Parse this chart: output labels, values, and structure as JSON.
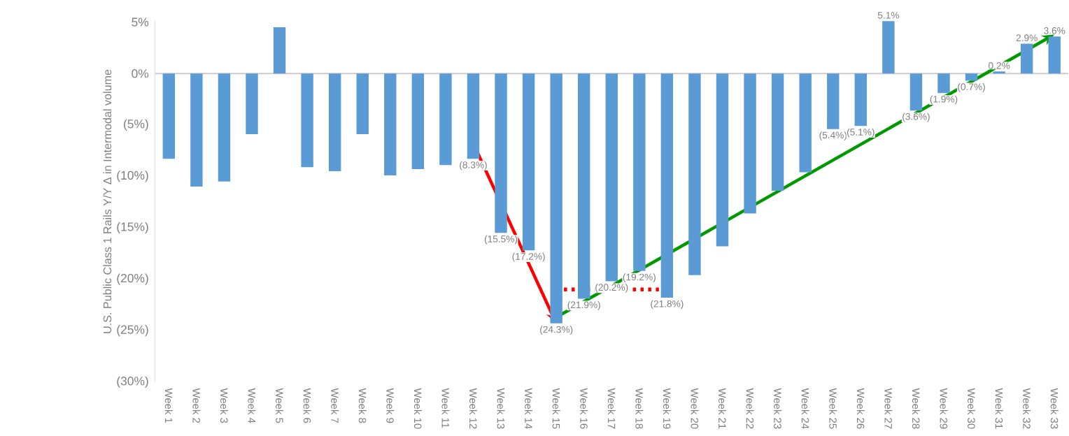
{
  "chart_data": {
    "type": "bar",
    "ylabel": "U.S. Public Class 1 Rails Y/Y Δ in Intermodal volume",
    "categories": [
      "Week 1",
      "Week 2",
      "Week 3",
      "Week 4",
      "Week 5",
      "Week 6",
      "Week 7",
      "Week 8",
      "Week 9",
      "Week 10",
      "Week 11",
      "Week 12",
      "Week 13",
      "Week 14",
      "Week 15",
      "Week 16",
      "Week 17",
      "Week 18",
      "Week 19",
      "Week 20",
      "Week 21",
      "Week 22",
      "Week 23",
      "Week 24",
      "Week 25",
      "Week 26",
      "Week 27",
      "Week 28",
      "Week 29",
      "Week 30",
      "Week 31",
      "Week 32",
      "Week 33"
    ],
    "series": [
      {
        "color": "#5b9bd5",
        "values": [
          -8.3,
          -11.0,
          -10.5,
          -5.9,
          4.5,
          -9.1,
          -9.5,
          -5.9,
          -9.9,
          -9.3,
          -8.9,
          -8.3,
          -15.5,
          -17.2,
          -24.3,
          -21.9,
          -20.2,
          -19.2,
          -21.8,
          -19.6,
          -16.8,
          -13.6,
          -11.4,
          -9.6,
          -5.4,
          -5.1,
          5.1,
          -3.6,
          -1.9,
          -0.7,
          0.2,
          2.9,
          3.6
        ],
        "value_labels": [
          null,
          null,
          null,
          null,
          null,
          null,
          null,
          null,
          null,
          null,
          null,
          "(8.3%)",
          "(15.5%)",
          "(17.2%)",
          "(24.3%)",
          "(21.9%)",
          "(20.2%)",
          "(19.2%)",
          "(21.8%)",
          null,
          null,
          null,
          null,
          null,
          "(5.4%)",
          "(5.1%)",
          "5.1%",
          "(3.6%)",
          "(1.9%)",
          "(0.7%)",
          "0.2%",
          "2.9%",
          "3.6%"
        ]
      }
    ],
    "yticks": [
      {
        "value": 5,
        "label": "5%"
      },
      {
        "value": 0,
        "label": "0%"
      },
      {
        "value": -5,
        "label": "(5%)"
      },
      {
        "value": -10,
        "label": "(10%)"
      },
      {
        "value": -15,
        "label": "(15%)"
      },
      {
        "value": -20,
        "label": "(20%)"
      },
      {
        "value": -25,
        "label": "(25%)"
      },
      {
        "value": -30,
        "label": "(30%)"
      }
    ],
    "ylim": [
      -30,
      5.1
    ]
  }
}
